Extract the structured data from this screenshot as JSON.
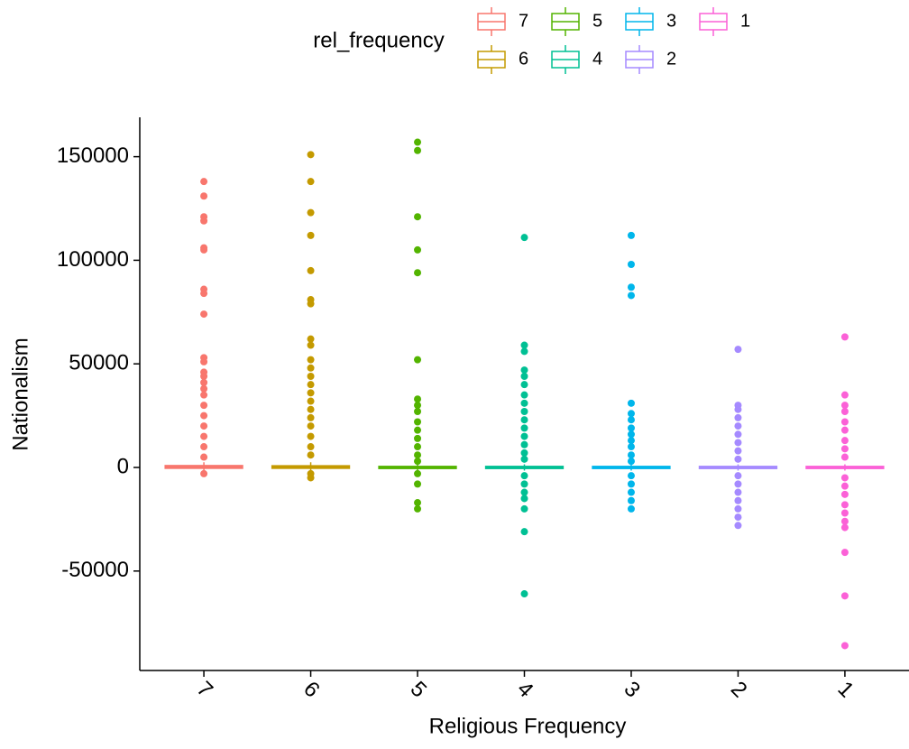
{
  "chart_data": {
    "type": "boxplot",
    "x_label": "Religious Frequency",
    "y_label": "Nationalism",
    "legend_title": "rel_frequency",
    "categories": [
      "7",
      "6",
      "5",
      "4",
      "3",
      "2",
      "1"
    ],
    "ylim": [
      -98000,
      169000
    ],
    "yticks": [
      -50000,
      0,
      50000,
      100000,
      150000
    ],
    "series": [
      {
        "name": "7",
        "color": "#F8766D",
        "box": {
          "whisker_low": -1500,
          "q1": -300,
          "median": 300,
          "q3": 800,
          "whisker_high": 2500
        },
        "outliers": [
          138000,
          131000,
          121000,
          119000,
          106000,
          105000,
          86000,
          84000,
          74000,
          53000,
          51000,
          46000,
          44000,
          41000,
          38000,
          35000,
          30000,
          25000,
          20000,
          15000,
          10000,
          5000,
          -3000
        ]
      },
      {
        "name": "6",
        "color": "#C49A00",
        "box": {
          "whisker_low": -1500,
          "q1": -300,
          "median": 200,
          "q3": 700,
          "whisker_high": 2500
        },
        "outliers": [
          151000,
          138000,
          123000,
          112000,
          95000,
          81000,
          79000,
          62000,
          59000,
          52000,
          48000,
          44000,
          40000,
          36000,
          32000,
          28000,
          24000,
          20000,
          15000,
          10000,
          6000,
          -3000,
          -5000
        ]
      },
      {
        "name": "5",
        "color": "#53B400",
        "box": {
          "whisker_low": -1500,
          "q1": -400,
          "median": 0,
          "q3": 400,
          "whisker_high": 1500
        },
        "outliers": [
          157000,
          153000,
          121000,
          105000,
          94000,
          52000,
          33000,
          30000,
          27000,
          22000,
          18000,
          14000,
          10000,
          6000,
          3000,
          -3000,
          -8000,
          -17000,
          -20000
        ]
      },
      {
        "name": "4",
        "color": "#00C094",
        "box": {
          "whisker_low": -1500,
          "q1": -400,
          "median": 0,
          "q3": 400,
          "whisker_high": 1500
        },
        "outliers": [
          111000,
          59000,
          56000,
          47000,
          44000,
          40000,
          35000,
          31000,
          27000,
          23000,
          19000,
          15000,
          11000,
          7000,
          4000,
          -4000,
          -8000,
          -12000,
          -15000,
          -20000,
          -31000,
          -61000
        ]
      },
      {
        "name": "3",
        "color": "#00B6EB",
        "box": {
          "whisker_low": -1500,
          "q1": -400,
          "median": 0,
          "q3": 400,
          "whisker_high": 1500
        },
        "outliers": [
          112000,
          98000,
          87000,
          83000,
          31000,
          26000,
          23000,
          19000,
          16000,
          13000,
          10000,
          6000,
          3000,
          -4000,
          -8000,
          -12000,
          -16000,
          -20000
        ]
      },
      {
        "name": "2",
        "color": "#A58AFF",
        "box": {
          "whisker_low": -1500,
          "q1": -400,
          "median": 0,
          "q3": 400,
          "whisker_high": 1500
        },
        "outliers": [
          57000,
          30000,
          28000,
          24000,
          20000,
          16000,
          12000,
          8000,
          4000,
          -4000,
          -8000,
          -12000,
          -16000,
          -20000,
          -24000,
          -28000
        ]
      },
      {
        "name": "1",
        "color": "#FB61D7",
        "box": {
          "whisker_low": -1500,
          "q1": -400,
          "median": 0,
          "q3": 400,
          "whisker_high": 1500
        },
        "outliers": [
          63000,
          35000,
          30000,
          27000,
          22000,
          18000,
          13000,
          9000,
          5000,
          -5000,
          -9000,
          -13000,
          -18000,
          -22000,
          -26000,
          -29000,
          -41000,
          -62000,
          -86000
        ]
      }
    ]
  }
}
